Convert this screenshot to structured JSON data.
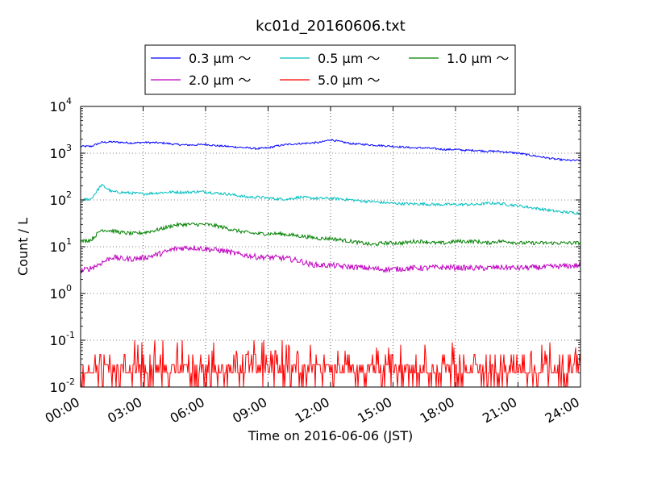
{
  "chart_data": {
    "type": "line",
    "title": "kc01d_20160606.txt",
    "xlabel": "Time on 2016-06-06 (JST)",
    "ylabel": "Count / L",
    "yscale": "log",
    "ylim": [
      0.01,
      10000
    ],
    "xlim": [
      "00:00",
      "24:00"
    ],
    "x_ticks": [
      "00:00",
      "03:00",
      "06:00",
      "09:00",
      "12:00",
      "15:00",
      "18:00",
      "21:00",
      "24:00"
    ],
    "y_ticks": [
      {
        "base": "10",
        "exp": "-2",
        "value": 0.01
      },
      {
        "base": "10",
        "exp": "-1",
        "value": 0.1
      },
      {
        "base": "10",
        "exp": "0",
        "value": 1
      },
      {
        "base": "10",
        "exp": "1",
        "value": 10
      },
      {
        "base": "10",
        "exp": "2",
        "value": 100
      },
      {
        "base": "10",
        "exp": "3",
        "value": 1000
      },
      {
        "base": "10",
        "exp": "4",
        "value": 10000
      }
    ],
    "grid": true,
    "legend_position": "top",
    "x": [
      "00:00",
      "00:30",
      "01:00",
      "01:30",
      "02:00",
      "02:30",
      "03:00",
      "03:30",
      "04:00",
      "04:30",
      "05:00",
      "05:30",
      "06:00",
      "06:30",
      "07:00",
      "07:30",
      "08:00",
      "08:30",
      "09:00",
      "09:30",
      "10:00",
      "10:30",
      "11:00",
      "11:30",
      "12:00",
      "12:30",
      "13:00",
      "13:30",
      "14:00",
      "14:30",
      "15:00",
      "15:30",
      "16:00",
      "16:30",
      "17:00",
      "17:30",
      "18:00",
      "18:30",
      "19:00",
      "19:30",
      "20:00",
      "20:30",
      "21:00",
      "21:30",
      "22:00",
      "22:30",
      "23:00",
      "23:30",
      "24:00"
    ],
    "series": [
      {
        "name": "0.3 μm ～",
        "color": "#0000ff",
        "noise": 0.02,
        "values": [
          1400,
          1400,
          1700,
          1750,
          1700,
          1650,
          1700,
          1680,
          1650,
          1550,
          1500,
          1500,
          1550,
          1450,
          1400,
          1350,
          1300,
          1250,
          1300,
          1450,
          1550,
          1600,
          1650,
          1700,
          1950,
          1750,
          1600,
          1550,
          1500,
          1450,
          1400,
          1350,
          1300,
          1300,
          1250,
          1200,
          1200,
          1150,
          1150,
          1100,
          1100,
          1050,
          1000,
          920,
          850,
          780,
          730,
          700,
          700
        ]
      },
      {
        "name": "0.5 μm ～",
        "color": "#00bfbf",
        "noise": 0.03,
        "values": [
          100,
          105,
          210,
          150,
          145,
          140,
          135,
          140,
          145,
          148,
          145,
          150,
          150,
          140,
          135,
          125,
          115,
          115,
          110,
          105,
          105,
          115,
          110,
          108,
          108,
          105,
          100,
          95,
          92,
          88,
          85,
          83,
          82,
          82,
          80,
          80,
          80,
          80,
          80,
          85,
          85,
          80,
          75,
          70,
          65,
          60,
          56,
          54,
          52
        ]
      },
      {
        "name": "1.0 μm ～",
        "color": "#008000",
        "noise": 0.04,
        "values": [
          13,
          14,
          23,
          22,
          20,
          19,
          20,
          22,
          25,
          29,
          30,
          30,
          30,
          28,
          25,
          22,
          20,
          19,
          19,
          19,
          18,
          17,
          16,
          15,
          15,
          14,
          13,
          12,
          11,
          12,
          12,
          12,
          13,
          13,
          12,
          12,
          13,
          13,
          13,
          12,
          13,
          13,
          12,
          12,
          12,
          12,
          12,
          12,
          12
        ]
      },
      {
        "name": "2.0 μm ～",
        "color": "#bf00bf",
        "noise": 0.06,
        "values": [
          3.0,
          3.5,
          4.5,
          6.0,
          5.5,
          5.5,
          5.8,
          6.5,
          7.5,
          9.0,
          9.5,
          9.5,
          9.0,
          8.5,
          8.0,
          7.0,
          6.5,
          6.0,
          6.0,
          5.8,
          5.5,
          5.0,
          4.2,
          4.0,
          4.0,
          3.8,
          3.7,
          3.6,
          3.4,
          3.3,
          3.3,
          3.4,
          3.5,
          3.5,
          3.6,
          3.6,
          3.6,
          3.5,
          3.5,
          3.5,
          3.6,
          3.6,
          3.5,
          3.6,
          3.6,
          3.7,
          3.8,
          3.9,
          4.0
        ]
      },
      {
        "name": "5.0 μm ～",
        "color": "#ff0000",
        "noise": 0,
        "values": [
          0.04,
          0.03,
          0.02,
          0.03,
          0.02,
          0.03,
          0.02,
          0.03,
          0.03,
          0.02,
          0.04,
          0.03,
          0.03,
          0.02,
          0.03,
          0.03,
          0.02,
          0.03,
          0.02,
          0.03,
          0.03,
          0.02,
          0.03,
          0.02,
          0.03,
          0.03,
          0.02,
          0.03,
          0.02,
          0.03,
          0.03,
          0.02,
          0.03,
          0.02,
          0.03,
          0.03,
          0.02,
          0.03,
          0.02,
          0.03,
          0.02,
          0.03,
          0.03,
          0.02,
          0.03,
          0.02,
          0.03,
          0.03,
          0.03
        ],
        "discrete_levels": [
          0.01,
          0.02,
          0.03,
          0.04,
          0.05,
          0.06,
          0.07,
          0.08,
          0.09,
          0.1
        ]
      }
    ]
  }
}
